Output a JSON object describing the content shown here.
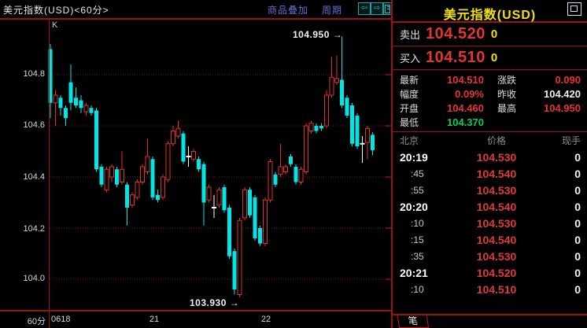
{
  "header": {
    "title": "美元指数(USD)<60分>",
    "overlay_link": "商品叠加",
    "period_link": "周期",
    "icons": {
      "back": "⇦",
      "forward": "⇨"
    }
  },
  "chart": {
    "indicator_label": "K",
    "period_label": "60分",
    "y_ticks": [
      "104.8",
      "104.6",
      "104.4",
      "104.2",
      "104.0"
    ],
    "x_labels": [
      "0618",
      "21",
      "22"
    ],
    "colors": {
      "up": "#e03030",
      "down": "#00e6e6",
      "doji": "#ffffff",
      "grid": "#7c1616",
      "axis": "#9b1212",
      "tick": "#c02020"
    }
  },
  "chart_data": {
    "type": "candlestick",
    "title": "美元指数(USD) 60分 K线",
    "high_annotation": "104.950 →",
    "low_annotation": "103.930 →",
    "y_axis_range": [
      103.88,
      105.0
    ],
    "candles": [
      [
        104.9,
        104.92,
        104.63,
        104.69,
        "d"
      ],
      [
        104.69,
        104.74,
        104.6,
        104.72,
        "u"
      ],
      [
        104.71,
        104.72,
        104.64,
        104.67,
        "d"
      ],
      [
        104.67,
        104.68,
        104.6,
        104.63,
        "d"
      ],
      [
        104.77,
        104.84,
        104.66,
        104.69,
        "d"
      ],
      [
        104.71,
        104.75,
        104.67,
        104.68,
        "d"
      ],
      [
        104.7,
        104.72,
        104.65,
        104.67,
        "d"
      ],
      [
        104.655,
        104.69,
        104.64,
        104.68,
        "u"
      ],
      [
        104.67,
        104.68,
        104.64,
        104.65,
        "d"
      ],
      [
        104.66,
        104.67,
        104.42,
        104.43,
        "d"
      ],
      [
        104.44,
        104.45,
        104.36,
        104.37,
        "d"
      ],
      [
        104.35,
        104.44,
        104.34,
        104.43,
        "u"
      ],
      [
        104.4,
        104.45,
        104.38,
        104.44,
        "u"
      ],
      [
        104.43,
        104.44,
        104.36,
        104.37,
        "d"
      ],
      [
        104.38,
        104.5,
        104.37,
        104.43,
        "u"
      ],
      [
        104.37,
        104.38,
        104.21,
        104.28,
        "d"
      ],
      [
        104.29,
        104.34,
        104.28,
        104.33,
        "u"
      ],
      [
        104.32,
        104.39,
        104.31,
        104.38,
        "u"
      ],
      [
        104.38,
        104.45,
        104.37,
        104.44,
        "u"
      ],
      [
        104.42,
        104.55,
        104.41,
        104.48,
        "u"
      ],
      [
        104.47,
        104.48,
        104.31,
        104.32,
        "d"
      ],
      [
        104.33,
        104.35,
        104.3,
        104.31,
        "d"
      ],
      [
        104.32,
        104.41,
        104.31,
        104.4,
        "u"
      ],
      [
        104.39,
        104.54,
        104.38,
        104.53,
        "u"
      ],
      [
        104.53,
        104.6,
        104.52,
        104.58,
        "u"
      ],
      [
        104.56,
        104.62,
        104.55,
        104.59,
        "u"
      ],
      [
        104.57,
        104.58,
        104.45,
        104.46,
        "d"
      ],
      [
        104.48,
        104.52,
        104.44,
        104.48,
        "j"
      ],
      [
        104.47,
        104.51,
        104.46,
        104.5,
        "u"
      ],
      [
        104.47,
        104.48,
        104.42,
        104.43,
        "d"
      ],
      [
        104.45,
        104.46,
        104.21,
        104.3,
        "d"
      ],
      [
        104.31,
        104.37,
        104.3,
        104.36,
        "u"
      ],
      [
        104.28,
        104.33,
        104.24,
        104.28,
        "j"
      ],
      [
        104.29,
        104.36,
        104.28,
        104.35,
        "u"
      ],
      [
        104.36,
        104.37,
        104.26,
        104.27,
        "d"
      ],
      [
        104.28,
        104.29,
        104.08,
        104.09,
        "d"
      ],
      [
        104.11,
        104.12,
        103.94,
        103.96,
        "d"
      ],
      [
        103.94,
        104.24,
        103.93,
        104.23,
        "u"
      ],
      [
        104.24,
        104.36,
        104.23,
        104.35,
        "u"
      ],
      [
        104.35,
        104.36,
        104.24,
        104.25,
        "d"
      ],
      [
        104.32,
        104.33,
        104.15,
        104.16,
        "d"
      ],
      [
        104.2,
        104.21,
        104.13,
        104.14,
        "d"
      ],
      [
        104.14,
        104.32,
        104.13,
        104.31,
        "u"
      ],
      [
        104.31,
        104.47,
        104.3,
        104.46,
        "u"
      ],
      [
        104.41,
        104.42,
        104.36,
        104.37,
        "d"
      ],
      [
        104.41,
        104.53,
        104.4,
        104.44,
        "u"
      ],
      [
        104.42,
        104.45,
        104.41,
        104.44,
        "u"
      ],
      [
        104.48,
        104.49,
        104.44,
        104.45,
        "d"
      ],
      [
        104.44,
        104.45,
        104.37,
        104.38,
        "d"
      ],
      [
        104.38,
        104.44,
        104.37,
        104.43,
        "u"
      ],
      [
        104.42,
        104.61,
        104.41,
        104.6,
        "u"
      ],
      [
        104.58,
        104.62,
        104.57,
        104.61,
        "u"
      ],
      [
        104.6,
        104.61,
        104.57,
        104.58,
        "d"
      ],
      [
        104.6,
        104.61,
        104.58,
        104.59,
        "d"
      ],
      [
        104.6,
        104.74,
        104.59,
        104.72,
        "u"
      ],
      [
        104.72,
        104.87,
        104.71,
        104.79,
        "u"
      ],
      [
        104.77,
        104.875,
        104.76,
        104.785,
        "u"
      ],
      [
        104.78,
        104.95,
        104.67,
        104.68,
        "d"
      ],
      [
        104.71,
        104.72,
        104.63,
        104.64,
        "d"
      ],
      [
        104.68,
        104.69,
        104.52,
        104.53,
        "d"
      ],
      [
        104.64,
        104.65,
        104.51,
        104.52,
        "d"
      ],
      [
        104.53,
        104.56,
        104.455,
        104.53,
        "j"
      ],
      [
        104.535,
        104.6,
        104.47,
        104.59,
        "u"
      ],
      [
        104.565,
        104.575,
        104.485,
        104.505,
        "d"
      ]
    ]
  },
  "quote_panel": {
    "title": "美元指数(USD)",
    "sell": {
      "label": "卖出",
      "price": "104.520",
      "volume": "0"
    },
    "buy": {
      "label": "买入",
      "price": "104.510",
      "volume": "0"
    },
    "stats": [
      {
        "label": "最新",
        "value": "104.510",
        "color": "red"
      },
      {
        "label": "涨跌",
        "value": "0.090",
        "color": "red"
      },
      {
        "label": "幅度",
        "value": "0.09%",
        "color": "red"
      },
      {
        "label": "昨收",
        "value": "104.420",
        "color": "white"
      },
      {
        "label": "开盘",
        "value": "104.460",
        "color": "red"
      },
      {
        "label": "最高",
        "value": "104.950",
        "color": "red"
      },
      {
        "label": "最低",
        "value": "104.370",
        "color": "green"
      },
      {
        "label": "",
        "value": "",
        "color": "white"
      }
    ],
    "table": {
      "headers": {
        "time": "北京",
        "price": "价格",
        "volume": "现手"
      },
      "rows": [
        {
          "time": "20:19",
          "price": "104.530",
          "vol": "0",
          "style": "major"
        },
        {
          "time": ":45",
          "price": "104.540",
          "vol": "0",
          "style": "minor"
        },
        {
          "time": ":55",
          "price": "104.530",
          "vol": "0",
          "style": "minor"
        },
        {
          "time": "20:20",
          "price": "104.540",
          "vol": "0",
          "style": "major"
        },
        {
          "time": ":10",
          "price": "104.530",
          "vol": "0",
          "style": "minor"
        },
        {
          "time": ":15",
          "price": "104.540",
          "vol": "0",
          "style": "minor"
        },
        {
          "time": ":35",
          "price": "104.530",
          "vol": "0",
          "style": "minor"
        },
        {
          "time": "20:21",
          "price": "104.520",
          "vol": "0",
          "style": "major"
        },
        {
          "time": ":10",
          "price": "104.510",
          "vol": "0",
          "style": "minor"
        }
      ]
    },
    "tab": "笔"
  }
}
